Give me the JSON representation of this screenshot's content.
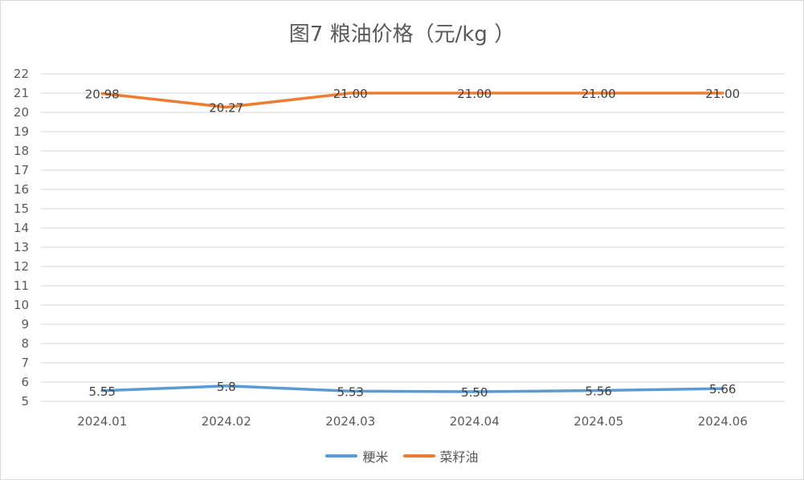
{
  "chart_data": {
    "type": "line",
    "title": "图7  粮油价格（元/kg ）",
    "categories": [
      "2024.01",
      "2024.02",
      "2024.03",
      "2024.04",
      "2024.05",
      "2024.06"
    ],
    "series": [
      {
        "name": "粳米",
        "values": [
          5.55,
          5.8,
          5.53,
          5.5,
          5.56,
          5.66
        ],
        "labels": [
          "5.55",
          "5.8",
          "5.53",
          "5.50",
          "5.56",
          "5.66"
        ],
        "color": "#5b9bd5"
      },
      {
        "name": "菜籽油",
        "values": [
          20.98,
          20.27,
          21.0,
          21.0,
          21.0,
          21.0
        ],
        "labels": [
          "20.98",
          "20.27",
          "21.00",
          "21.00",
          "21.00",
          "21.00"
        ],
        "color": "#ed7d31"
      }
    ],
    "y_ticks": [
      "5",
      "6",
      "7",
      "8",
      "9",
      "10",
      "11",
      "12",
      "13",
      "14",
      "15",
      "16",
      "17",
      "18",
      "19",
      "20",
      "21",
      "22"
    ],
    "ylim": [
      5,
      22
    ],
    "grid": true,
    "legend_position": "bottom"
  }
}
